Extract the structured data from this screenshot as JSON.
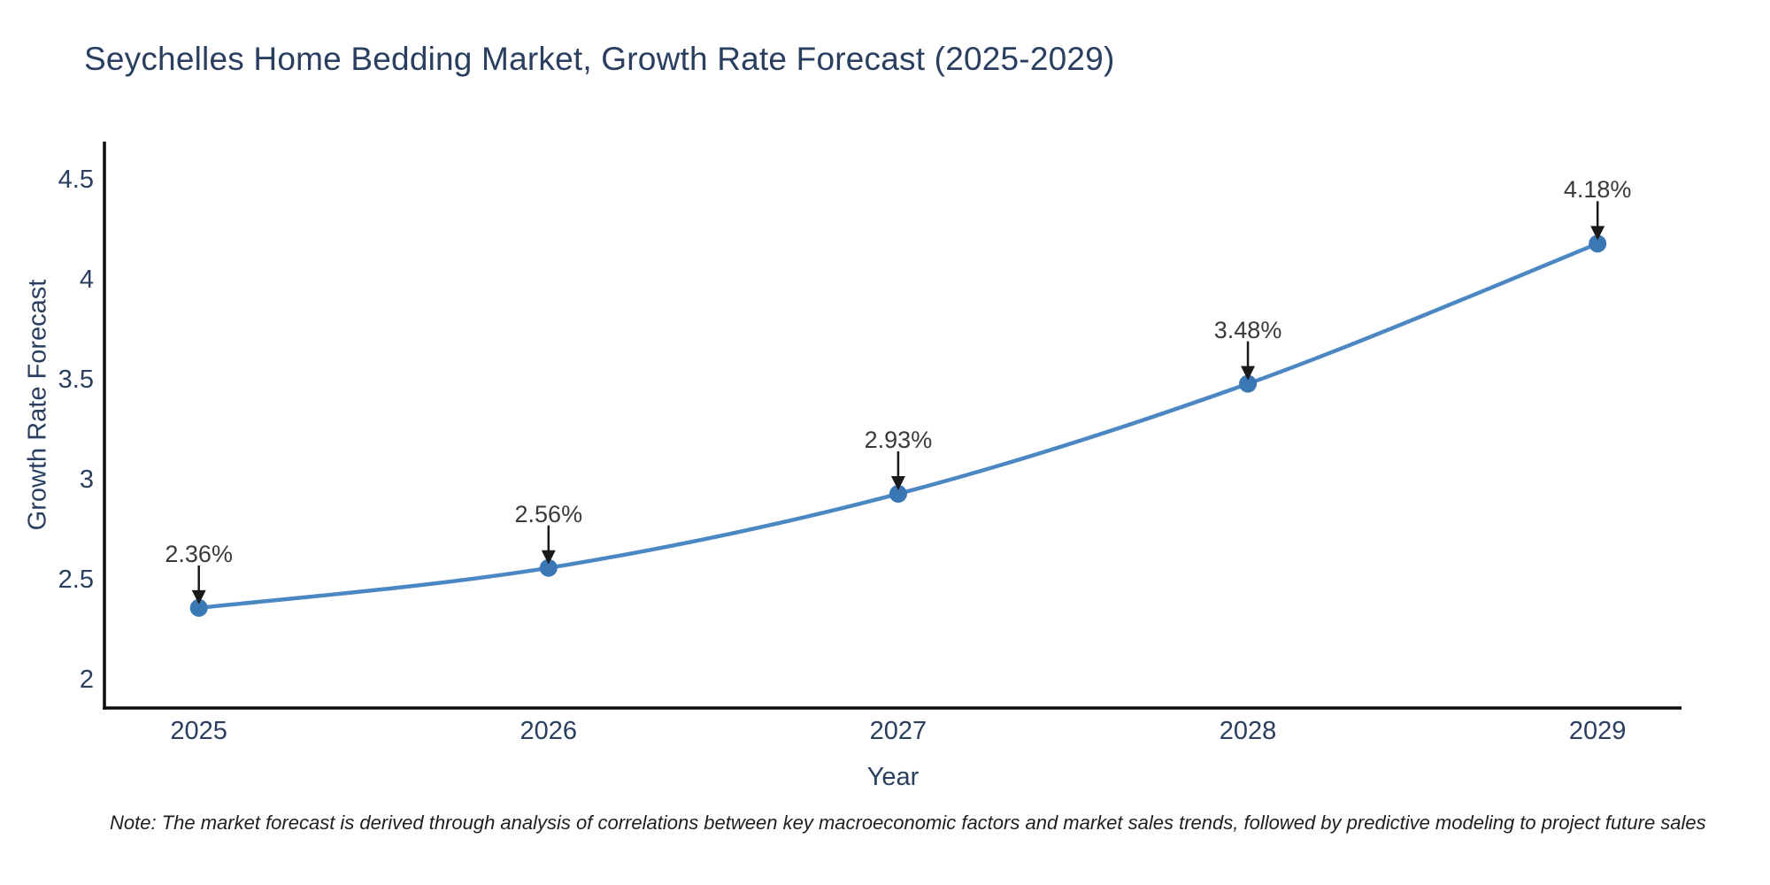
{
  "title": "Seychelles Home Bedding Market, Growth Rate Forecast (2025-2029)",
  "footer_note": "Note: The market forecast is derived through analysis of correlations between key macroeconomic factors and market sales trends, followed by predictive modeling to project future sales",
  "chart_data": {
    "type": "line",
    "title": "Seychelles Home Bedding Market, Growth Rate Forecast (2025-2029)",
    "xlabel": "Year",
    "ylabel": "Growth Rate Forecast",
    "x": [
      2025,
      2026,
      2027,
      2028,
      2029
    ],
    "x_tick_labels": [
      "2025",
      "2026",
      "2027",
      "2028",
      "2029"
    ],
    "values": [
      2.36,
      2.56,
      2.93,
      3.48,
      4.18
    ],
    "point_labels": [
      "2.36%",
      "2.56%",
      "2.93%",
      "3.48%",
      "4.18%"
    ],
    "yticks": [
      2,
      2.5,
      3,
      3.5,
      4,
      4.5
    ],
    "ytick_labels": [
      "2",
      "2.5",
      "3",
      "3.5",
      "4",
      "4.5"
    ],
    "xlim": [
      2024.73,
      2029.24
    ],
    "ylim": [
      1.86,
      4.69
    ],
    "grid": false,
    "legend": "none",
    "line_shape": "spline",
    "annotation_arrows": true,
    "colors": {
      "line": "#4a87c3",
      "marker": "#3a77b5",
      "arrow": "#1a1a1a",
      "axis_line": "#0d0d0d",
      "axis_text": "#2a3f5f",
      "annotation_text": "#3a3a3a",
      "background": "#ffffff"
    }
  }
}
